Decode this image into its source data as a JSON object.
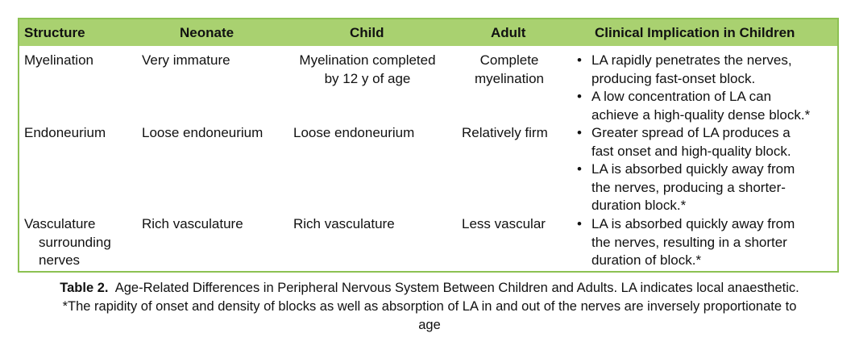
{
  "headers": {
    "structure": "Structure",
    "neonate": "Neonate",
    "child": "Child",
    "adult": "Adult",
    "clinical": "Clinical Implication in Children"
  },
  "rows": [
    {
      "structure": [
        "Myelination"
      ],
      "neonate": [
        "Very immature"
      ],
      "child": [
        "Myelination completed",
        "by 12 y of age"
      ],
      "adult": [
        "Complete",
        "myelination"
      ],
      "clinical": [
        [
          "LA rapidly penetrates the nerves,",
          "producing fast-onset block."
        ],
        [
          "A low concentration of LA can",
          "achieve a high-quality dense block.*"
        ]
      ]
    },
    {
      "structure": [
        "Endoneurium"
      ],
      "neonate": [
        "Loose endoneurium"
      ],
      "child": [
        "Loose endoneurium"
      ],
      "adult": [
        "Relatively firm"
      ],
      "clinical": [
        [
          "Greater spread of LA produces a",
          "fast onset and high-quality block."
        ],
        [
          "LA is absorbed quickly away from",
          "the nerves, producing a shorter-",
          "duration block.*"
        ]
      ]
    },
    {
      "structure": [
        "Vasculature",
        "surrounding",
        "nerves"
      ],
      "neonate": [
        "Rich vasculature"
      ],
      "child": [
        "Rich vasculature"
      ],
      "adult": [
        "Less vascular"
      ],
      "clinical": [
        [
          "LA is absorbed quickly away from",
          "the nerves, resulting in a shorter",
          "duration of block.*"
        ]
      ]
    }
  ],
  "caption": {
    "label": "Table 2.",
    "line1": "Age-Related Differences in Peripheral Nervous System Between Children and Adults. LA indicates local anaesthetic.",
    "line2": "*The rapidity of onset and density of blocks as well as absorption of LA in and out of the nerves are inversely proportionate to",
    "line3": "age"
  }
}
